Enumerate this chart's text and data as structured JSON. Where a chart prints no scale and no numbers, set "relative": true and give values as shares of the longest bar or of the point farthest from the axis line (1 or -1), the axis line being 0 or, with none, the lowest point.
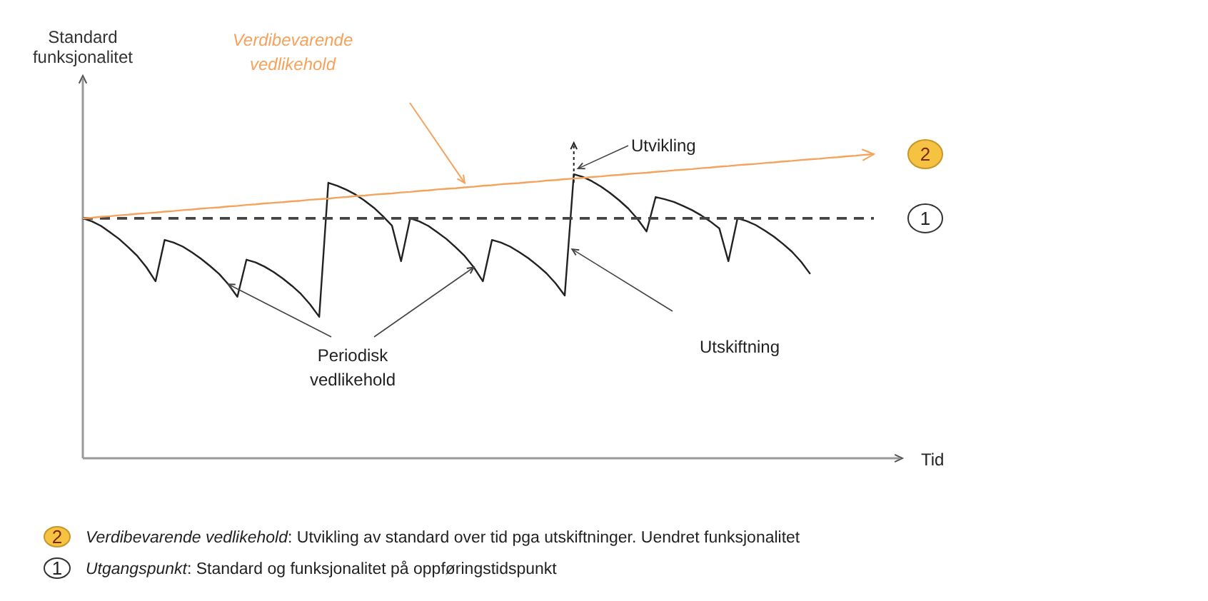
{
  "chart_data": {
    "type": "line",
    "relative": true,
    "xlabel": "Tid",
    "marker": "none",
    "categories": [
      null,
      null,
      null,
      null,
      null,
      null,
      null,
      null,
      null,
      null,
      null,
      null,
      null,
      null,
      null,
      null,
      null,
      null,
      null,
      null,
      null,
      null,
      null,
      null,
      null,
      null,
      null,
      null,
      null,
      null,
      null,
      null,
      null,
      null,
      null,
      null,
      null,
      null,
      null,
      null,
      null,
      null,
      null,
      null,
      null,
      null,
      null,
      null,
      null,
      null,
      null,
      null,
      null,
      null,
      null,
      null,
      null,
      null,
      null,
      null,
      null,
      null,
      null,
      null,
      null,
      null,
      null,
      null,
      null,
      null,
      null,
      null,
      null,
      null,
      null,
      null,
      null,
      null,
      null,
      null,
      null,
      null,
      null,
      null,
      null,
      null,
      null,
      null
    ],
    "series": [
      {
        "color": "#222222",
        "line_style": "solid",
        "values": [
          0.789,
          0.779,
          0.764,
          0.743,
          0.721,
          0.694,
          0.665,
          0.628,
          0.582,
          0.718,
          0.709,
          0.696,
          0.677,
          0.656,
          0.632,
          0.606,
          0.572,
          0.531,
          0.653,
          0.644,
          0.63,
          0.612,
          0.591,
          0.567,
          0.54,
          0.506,
          0.465,
          0.906,
          0.896,
          0.883,
          0.867,
          0.847,
          0.824,
          0.796,
          0.765,
          0.648,
          0.789,
          0.779,
          0.764,
          0.743,
          0.721,
          0.694,
          0.665,
          0.628,
          0.582,
          0.718,
          0.709,
          0.696,
          0.678,
          0.658,
          0.634,
          0.608,
          0.575,
          0.535,
          0.934,
          0.925,
          0.911,
          0.893,
          0.872,
          0.848,
          0.821,
          0.787,
          0.746,
          0.859,
          0.852,
          0.843,
          0.83,
          0.816,
          0.799,
          0.779,
          0.756,
          0.648,
          0.789,
          0.78,
          0.767,
          0.749,
          0.729,
          0.705,
          0.679,
          0.646,
          0.606,
          null,
          null,
          null,
          null,
          null,
          null,
          null
        ]
      },
      {
        "color": "#444444",
        "line_style": "dashed",
        "values": [
          0.789,
          0.789,
          0.789,
          0.789,
          0.789,
          0.789,
          0.789,
          0.789,
          0.789,
          0.789,
          0.789,
          0.789,
          0.789,
          0.789,
          0.789,
          0.789,
          0.789,
          0.789,
          0.789,
          0.789,
          0.789,
          0.789,
          0.789,
          0.789,
          0.789,
          0.789,
          0.789,
          0.789,
          0.789,
          0.789,
          0.789,
          0.789,
          0.789,
          0.789,
          0.789,
          0.789,
          0.789,
          0.789,
          0.789,
          0.789,
          0.789,
          0.789,
          0.789,
          0.789,
          0.789,
          0.789,
          0.789,
          0.789,
          0.789,
          0.789,
          0.789,
          0.789,
          0.789,
          0.789,
          0.789,
          0.789,
          0.789,
          0.789,
          0.789,
          0.789,
          0.789,
          0.789,
          0.789,
          0.789,
          0.789,
          0.789,
          0.789,
          0.789,
          0.789,
          0.789,
          0.789,
          0.789,
          0.789,
          0.789,
          0.789,
          0.789,
          0.789,
          0.789,
          0.789,
          0.789,
          0.789,
          0.789,
          0.789,
          0.789,
          0.789,
          0.789,
          0.789,
          0.789
        ]
      },
      {
        "name": "Verdibevarende vedlikehold",
        "color": "#f5a35c",
        "line_style": "solid",
        "values": [
          0.789,
          0.791,
          0.794,
          0.796,
          0.799,
          0.801,
          0.804,
          0.806,
          0.808,
          0.811,
          0.813,
          0.816,
          0.818,
          0.821,
          0.823,
          0.825,
          0.828,
          0.83,
          0.833,
          0.835,
          0.838,
          0.84,
          0.842,
          0.845,
          0.847,
          0.85,
          0.852,
          0.854,
          0.857,
          0.859,
          0.862,
          0.864,
          0.867,
          0.869,
          0.871,
          0.874,
          0.876,
          0.879,
          0.881,
          0.884,
          0.886,
          0.888,
          0.891,
          0.893,
          0.896,
          0.898,
          0.901,
          0.903,
          0.905,
          0.908,
          0.91,
          0.913,
          0.915,
          0.918,
          0.92,
          0.922,
          0.925,
          0.927,
          0.93,
          0.932,
          0.935,
          0.937,
          0.939,
          0.942,
          0.944,
          0.947,
          0.949,
          0.951,
          0.954,
          0.956,
          0.959,
          0.961,
          0.964,
          0.966,
          0.968,
          0.971,
          0.973,
          0.976,
          0.978,
          0.981,
          0.983,
          0.985,
          0.988,
          0.99,
          0.993,
          0.995,
          0.998,
          1
        ]
      }
    ],
    "annotations": [
      "Utvikling",
      "Utskiftning",
      "Periodisk vedlikehold",
      "2",
      "1",
      "Verdibevarende vedlikehold: Utvikling av standard over tid pga utskiftninger. Uendret funksjonalitet",
      "Utgangspunkt: Standard og funksjonalitet på oppføringstidspunkt",
      "Standard funksjonalitet"
    ]
  }
}
